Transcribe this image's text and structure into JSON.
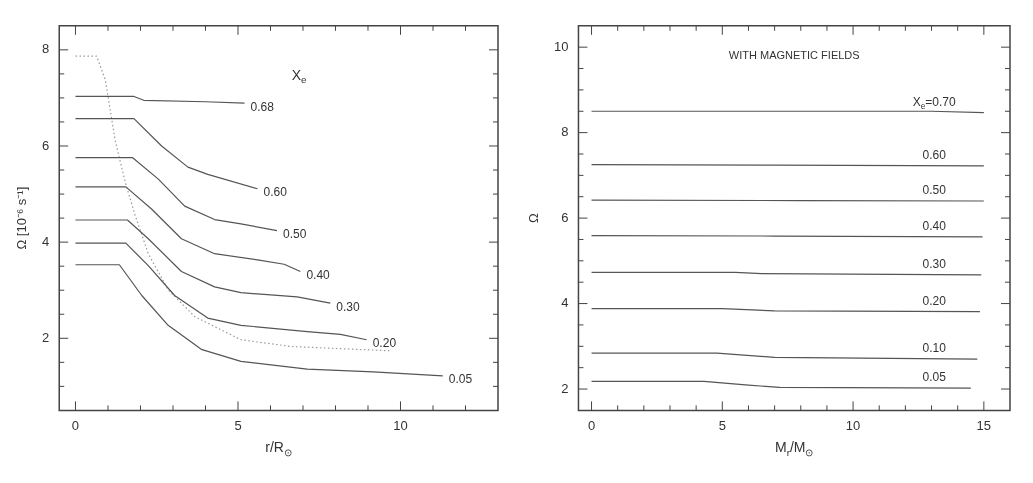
{
  "chart_data": [
    {
      "type": "line",
      "xlabel": "r/R$_{⊙}$",
      "ylabel": "Ω [10⁻⁶ s⁻¹]",
      "legend_title": "X$_{e}$",
      "xlim": [
        -0.5,
        13
      ],
      "ylim": [
        0.5,
        8.5
      ],
      "xticks": [
        0,
        {
          "value": 1,
          "label": null
        },
        {
          "value": 2,
          "label": null
        },
        {
          "value": 3,
          "label": null
        },
        {
          "value": 4,
          "label": null
        },
        5,
        {
          "value": 6,
          "label": null
        },
        {
          "value": 7,
          "label": null
        },
        {
          "value": 8,
          "label": null
        },
        {
          "value": 9,
          "label": null
        },
        10,
        {
          "value": 11,
          "label": null
        },
        {
          "value": 12,
          "label": null
        }
      ],
      "yticks": [
        {
          "value": 1,
          "label": null
        },
        {
          "value": 1.5,
          "label": null
        },
        2,
        {
          "value": 2.5,
          "label": null
        },
        {
          "value": 3,
          "label": null
        },
        {
          "value": 3.5,
          "label": null
        },
        4,
        {
          "value": 4.5,
          "label": null
        },
        {
          "value": 5,
          "label": null
        },
        {
          "value": 5.5,
          "label": null
        },
        6,
        {
          "value": 6.5,
          "label": null
        },
        {
          "value": 7,
          "label": null
        },
        {
          "value": 7.5,
          "label": null
        },
        8
      ],
      "grid": false,
      "marker": "none",
      "line_style": "solid",
      "series": [
        {
          "name": "0.68",
          "color": "#555555",
          "x": [
            0,
            1.8,
            2.1,
            4,
            5.2
          ],
          "values": [
            7.03,
            7.03,
            6.95,
            6.92,
            6.89
          ]
        },
        {
          "name": "0.60",
          "color": "#555555",
          "x": [
            0,
            1.8,
            2.65,
            3.46,
            4.07,
            5.6
          ],
          "values": [
            6.57,
            6.57,
            6.0,
            5.56,
            5.41,
            5.11
          ]
        },
        {
          "name": "0.50",
          "color": "#555555",
          "x": [
            0,
            1.75,
            2.55,
            3.36,
            4.28,
            5.09,
            6.2
          ],
          "values": [
            5.76,
            5.76,
            5.31,
            4.75,
            4.47,
            4.38,
            4.24
          ]
        },
        {
          "name": "0.40",
          "color": "#555555",
          "x": [
            0,
            1.55,
            2.34,
            3.26,
            4.28,
            5.6,
            6.42,
            6.92
          ],
          "values": [
            5.15,
            5.15,
            4.69,
            4.07,
            3.76,
            3.63,
            3.54,
            3.39
          ]
        },
        {
          "name": "0.30",
          "color": "#555555",
          "x": [
            0,
            1.6,
            2.24,
            3.26,
            4.28,
            5.09,
            6.82,
            7.84
          ],
          "values": [
            4.46,
            4.46,
            4.07,
            3.39,
            3.07,
            2.95,
            2.86,
            2.73
          ]
        },
        {
          "name": "0.20",
          "color": "#555555",
          "x": [
            0,
            1.55,
            2.24,
            3.05,
            4.07,
            5.09,
            7.13,
            8.15,
            8.96
          ],
          "values": [
            3.98,
            3.98,
            3.51,
            2.89,
            2.42,
            2.27,
            2.14,
            2.08,
            1.97
          ]
        },
        {
          "name": "0.05",
          "color": "#555555",
          "x": [
            0,
            1.35,
            2.04,
            2.85,
            3.87,
            5.09,
            7.13,
            9.16,
            11.3
          ],
          "values": [
            3.53,
            3.53,
            2.89,
            2.27,
            1.77,
            1.52,
            1.36,
            1.3,
            1.22
          ]
        },
        {
          "color": "#999999",
          "line_style": "dotted",
          "x": [
            0,
            0.65,
            0.92,
            1.22,
            1.53,
            1.83,
            2.24,
            2.85,
            3.67,
            5.09,
            6.62,
            9.67
          ],
          "values": [
            7.87,
            7.87,
            7.37,
            6.12,
            5.25,
            4.57,
            3.76,
            3.01,
            2.45,
            1.97,
            1.83,
            1.74
          ]
        }
      ]
    },
    {
      "type": "line",
      "xlabel": "M$_{r}$/M$_{⊙}$",
      "ylabel": "Ω",
      "annotations": [
        "WITH MAGNETIC FIELDS"
      ],
      "xlim": [
        -0.5,
        16
      ],
      "ylim": [
        1.5,
        10.5
      ],
      "xticks": [
        0,
        {
          "value": 1,
          "label": null
        },
        {
          "value": 2,
          "label": null
        },
        {
          "value": 3,
          "label": null
        },
        {
          "value": 4,
          "label": null
        },
        5,
        {
          "value": 6,
          "label": null
        },
        {
          "value": 7,
          "label": null
        },
        {
          "value": 8,
          "label": null
        },
        {
          "value": 9,
          "label": null
        },
        10,
        {
          "value": 11,
          "label": null
        },
        {
          "value": 12,
          "label": null
        },
        {
          "value": 13,
          "label": null
        },
        {
          "value": 14,
          "label": null
        },
        15
      ],
      "yticks": [
        2,
        {
          "value": 2.5,
          "label": null
        },
        {
          "value": 3,
          "label": null
        },
        {
          "value": 3.5,
          "label": null
        },
        4,
        {
          "value": 4.5,
          "label": null
        },
        {
          "value": 5,
          "label": null
        },
        {
          "value": 5.5,
          "label": null
        },
        6,
        {
          "value": 6.5,
          "label": null
        },
        {
          "value": 7,
          "label": null
        },
        {
          "value": 7.5,
          "label": null
        },
        8,
        {
          "value": 8.5,
          "label": null
        },
        {
          "value": 9,
          "label": null
        },
        {
          "value": 9.5,
          "label": null
        },
        10
      ],
      "grid": false,
      "marker": "none",
      "line_style": "solid",
      "series": [
        {
          "name": "X$_{e}$=0.70",
          "color": "#555555",
          "x": [
            0,
            13,
            15
          ],
          "values": [
            8.5,
            8.5,
            8.47
          ]
        },
        {
          "name": "0.60",
          "color": "#555555",
          "x": [
            0,
            7,
            15
          ],
          "values": [
            7.25,
            7.24,
            7.22
          ]
        },
        {
          "name": "0.50",
          "color": "#555555",
          "x": [
            0,
            8,
            15
          ],
          "values": [
            6.42,
            6.41,
            6.4
          ]
        },
        {
          "name": "0.40",
          "color": "#555555",
          "x": [
            0,
            7,
            14.95
          ],
          "values": [
            5.59,
            5.58,
            5.56
          ]
        },
        {
          "name": "0.30",
          "color": "#555555",
          "x": [
            0,
            5.5,
            6.5,
            14.9
          ],
          "values": [
            4.73,
            4.73,
            4.7,
            4.67
          ]
        },
        {
          "name": "0.20",
          "color": "#555555",
          "x": [
            0,
            5,
            7,
            14.85
          ],
          "values": [
            3.88,
            3.88,
            3.83,
            3.81
          ]
        },
        {
          "name": "0.10",
          "color": "#555555",
          "x": [
            0,
            4.8,
            7,
            14.75
          ],
          "values": [
            2.84,
            2.84,
            2.74,
            2.7
          ]
        },
        {
          "name": "0.05",
          "color": "#555555",
          "x": [
            0,
            4.3,
            6,
            7.2,
            14.5
          ],
          "values": [
            2.18,
            2.18,
            2.09,
            2.04,
            2.02
          ]
        }
      ]
    }
  ]
}
